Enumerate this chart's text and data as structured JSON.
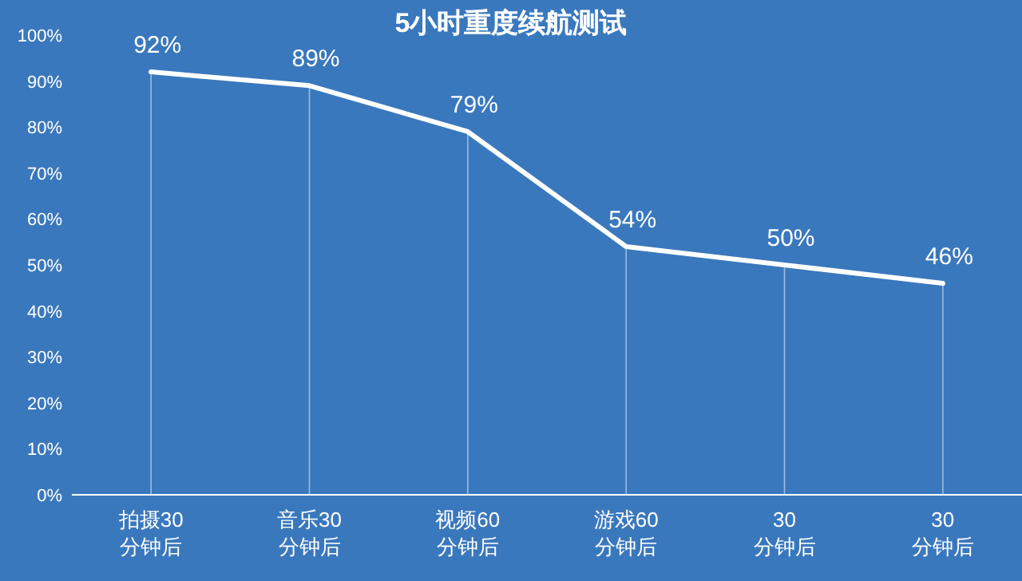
{
  "chart_data": {
    "type": "line",
    "title": "5小时重度续航测试",
    "categories": [
      "拍摄30\n分钟后",
      "音乐30\n分钟后",
      "视频60\n分钟后",
      "游戏60\n分钟后",
      "30\n分钟后",
      "30\n分钟后"
    ],
    "series": [
      {
        "color": "#ffffff",
        "values": [
          92,
          89,
          79,
          54,
          50,
          46
        ]
      }
    ],
    "value_labels": [
      "92%",
      "89%",
      "79%",
      "54%",
      "50%",
      "46%"
    ],
    "ylim": [
      0,
      100
    ],
    "yticks": [
      {
        "value": 0,
        "label": "0%"
      },
      {
        "value": 10,
        "label": "10%"
      },
      {
        "value": 20,
        "label": "20%"
      },
      {
        "value": 30,
        "label": "30%"
      },
      {
        "value": 40,
        "label": "40%"
      },
      {
        "value": 50,
        "label": "50%"
      },
      {
        "value": 60,
        "label": "60%"
      },
      {
        "value": 70,
        "label": "70%"
      },
      {
        "value": 80,
        "label": "80%"
      },
      {
        "value": 90,
        "label": "90%"
      },
      {
        "value": 100,
        "label": "100%"
      }
    ],
    "grid": "x",
    "marker": "none",
    "line_style": "solid"
  }
}
